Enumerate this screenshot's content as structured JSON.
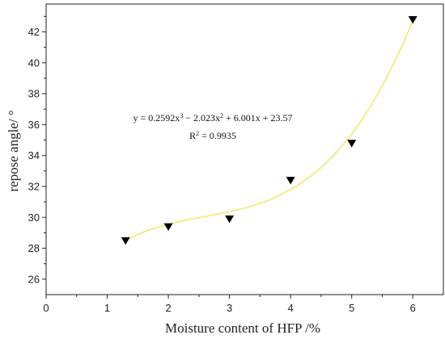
{
  "chart_data": {
    "type": "scatter",
    "title": "",
    "xlabel": "Moisture content of HFP /%",
    "ylabel": "repose angle/ °",
    "xlim": [
      0,
      6.5
    ],
    "ylim": [
      25,
      43.8
    ],
    "x_ticks": [
      0,
      1,
      2,
      3,
      4,
      5,
      6
    ],
    "y_ticks": [
      26,
      28,
      30,
      32,
      34,
      36,
      38,
      40,
      42
    ],
    "grid": false,
    "legend": "none",
    "series": [
      {
        "marker": "triangle-down",
        "color": "#000000",
        "points": [
          {
            "x": 1.3,
            "y": 28.5
          },
          {
            "x": 2.0,
            "y": 29.4
          },
          {
            "x": 3.0,
            "y": 29.9
          },
          {
            "x": 4.0,
            "y": 32.4
          },
          {
            "x": 5.0,
            "y": 34.8
          },
          {
            "x": 6.0,
            "y": 42.8
          }
        ]
      }
    ],
    "fit": {
      "type": "cubic",
      "coefficients": [
        0.2592,
        -2.023,
        6.001,
        23.57
      ],
      "x_range": [
        1.3,
        6.0
      ],
      "color": "#f2ea6a"
    },
    "annotation": {
      "equation": {
        "lead": "y = 0.2592x",
        "sup1": "3",
        "mid": " − 2.023x",
        "sup2": "2",
        "tail": " + 6.001x + 23.57"
      },
      "r2": {
        "lead": "R",
        "sup": "2",
        "tail": " = 0.9935"
      }
    }
  }
}
